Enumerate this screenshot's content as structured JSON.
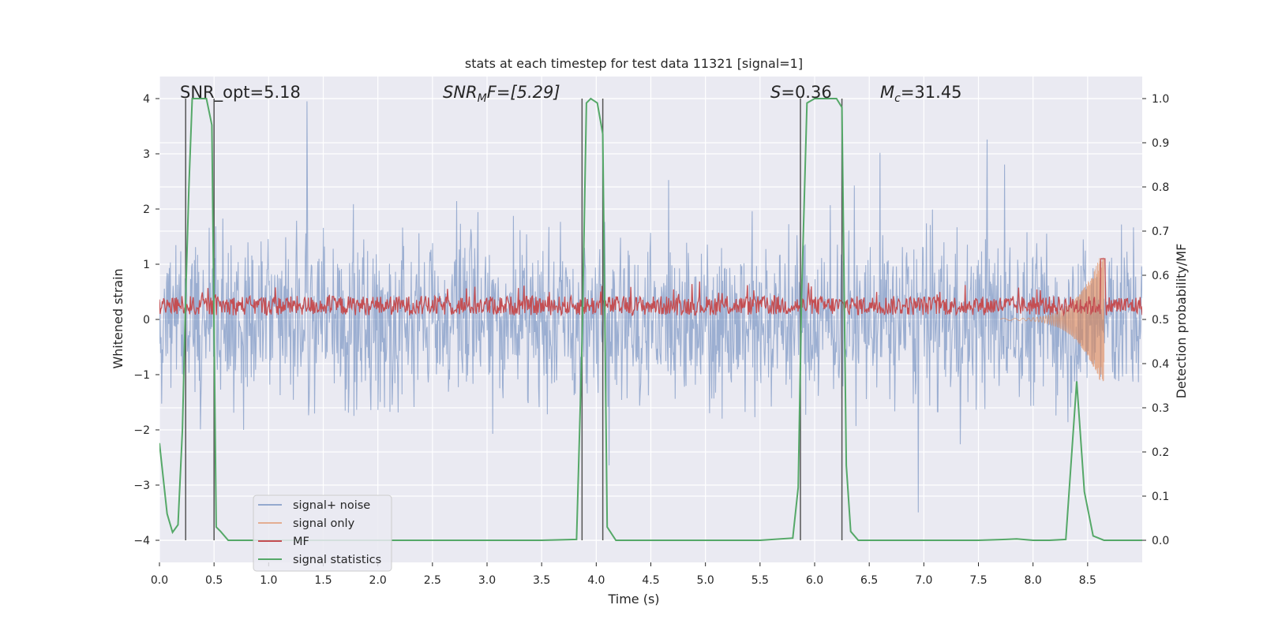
{
  "chart_data": {
    "type": "line",
    "title": "stats at each timestep for test data 11321 [signal=1]",
    "xlabel": "Time (s)",
    "ylabel": "Whitened strain",
    "y2label": "Detection probability/MF",
    "xlim": [
      0.0,
      9.0
    ],
    "ylim": [
      -4.4,
      4.4
    ],
    "y2lim": [
      -0.05,
      1.05
    ],
    "xticks": [
      "0.0",
      "0.5",
      "1.0",
      "1.5",
      "2.0",
      "2.5",
      "3.0",
      "3.5",
      "4.0",
      "4.5",
      "5.0",
      "5.5",
      "6.0",
      "6.5",
      "7.0",
      "7.5",
      "8.0",
      "8.5"
    ],
    "yticks": [
      "−4",
      "−3",
      "−2",
      "−1",
      "0",
      "1",
      "2",
      "3",
      "4"
    ],
    "y2ticks": [
      "0.0",
      "0.1",
      "0.2",
      "0.3",
      "0.4",
      "0.5",
      "0.6",
      "0.7",
      "0.8",
      "0.9",
      "1.0"
    ],
    "annotations": {
      "snr_opt": "SNR_opt=5.18",
      "snr_mf_base": "SNR",
      "snr_mf_sub": "M",
      "snr_mf_rest": "F=[5.29]",
      "s_base": "S",
      "s_rest": "=0.36",
      "mc_base": "M",
      "mc_sub": "c",
      "mc_rest": "=31.45"
    },
    "legend": {
      "position": "lower-left",
      "entries": [
        "signal+ noise",
        "signal only",
        "MF",
        "signal statistics"
      ]
    },
    "colors": {
      "background": "#eaeaf2",
      "grid": "#ffffff",
      "noise": "#4c72b0",
      "signal": "#dd8452",
      "mf": "#c44e52",
      "stat": "#55a868",
      "vline": "#555555"
    },
    "series": [
      {
        "name": "signal statistics",
        "axis": "right",
        "x": [
          0.0,
          0.07,
          0.12,
          0.17,
          0.21,
          0.24,
          0.27,
          0.3,
          0.36,
          0.43,
          0.48,
          0.52,
          0.56,
          0.63,
          0.8,
          1.5,
          2.5,
          3.0,
          3.5,
          3.82,
          3.87,
          3.91,
          3.95,
          4.01,
          4.06,
          4.1,
          4.18,
          4.5,
          5.0,
          5.5,
          5.8,
          5.85,
          5.88,
          5.93,
          6.0,
          6.1,
          6.2,
          6.25,
          6.29,
          6.33,
          6.4,
          7.0,
          7.5,
          7.75,
          7.85,
          8.0,
          8.15,
          8.3,
          8.4,
          8.47,
          8.55,
          8.65,
          8.75,
          9.0
        ],
        "y": [
          0.22,
          0.06,
          0.018,
          0.035,
          0.25,
          0.55,
          0.8,
          1.0,
          1.0,
          1.0,
          0.94,
          0.03,
          0.02,
          0.0,
          0.0,
          0.0,
          0.0,
          0.0,
          0.0,
          0.002,
          0.45,
          0.99,
          1.0,
          0.99,
          0.92,
          0.03,
          0.0,
          0.0,
          0.0,
          0.0,
          0.005,
          0.12,
          0.55,
          0.99,
          1.0,
          1.0,
          1.0,
          0.98,
          0.17,
          0.02,
          0.0,
          0.0,
          0.0,
          0.002,
          0.003,
          0.0,
          0.0,
          0.002,
          0.36,
          0.11,
          0.01,
          0.0,
          0.0,
          0.0
        ]
      },
      {
        "name": "signal only",
        "axis": "left",
        "description_range": [
          7.7,
          8.65
        ],
        "peak_amplitude": 1.3
      },
      {
        "name": "MF",
        "axis": "left",
        "baseline": 0.25,
        "typical_max": 0.6
      },
      {
        "name": "signal+ noise",
        "axis": "left",
        "typical_range": [
          -3,
          3.5
        ]
      }
    ],
    "vertical_lines_x": [
      0.24,
      0.5,
      3.87,
      4.06,
      5.87,
      6.25
    ]
  }
}
